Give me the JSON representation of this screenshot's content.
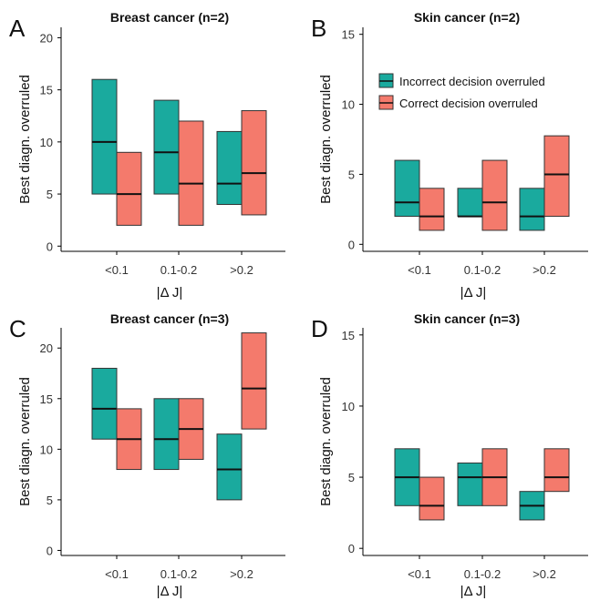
{
  "colors": {
    "incorrect": "#1aaa9e",
    "correct": "#f47a6c",
    "axis": "#000000"
  },
  "legend": {
    "entries": [
      "Incorrect decision overruled",
      "Correct decision overruled"
    ]
  },
  "chart_data": [
    {
      "type": "box",
      "panel": "A",
      "title": "Breast cancer (n=2)",
      "xlabel": "|Δ J|",
      "ylabel": "Best diagn. overruled",
      "categories": [
        "<0.1",
        "0.1-0.2",
        ">0.2"
      ],
      "yticks": [
        0,
        5,
        10,
        15,
        20
      ],
      "ylim": [
        -0.5,
        21
      ],
      "series": [
        {
          "name": "Incorrect decision overruled",
          "boxes": [
            {
              "low": 5,
              "median": 10,
              "high": 16
            },
            {
              "low": 5,
              "median": 9,
              "high": 14
            },
            {
              "low": 4,
              "median": 6,
              "high": 11
            }
          ]
        },
        {
          "name": "Correct decision overruled",
          "boxes": [
            {
              "low": 2,
              "median": 5,
              "high": 9
            },
            {
              "low": 2,
              "median": 6,
              "high": 12
            },
            {
              "low": 3,
              "median": 7,
              "high": 13
            }
          ]
        }
      ]
    },
    {
      "type": "box",
      "panel": "B",
      "title": "Skin cancer (n=2)",
      "xlabel": "|Δ J|",
      "ylabel": "Best diagn. overruled",
      "categories": [
        "<0.1",
        "0.1-0.2",
        ">0.2"
      ],
      "yticks": [
        0,
        5,
        10,
        15
      ],
      "ylim": [
        -0.5,
        15.5
      ],
      "legend": "inside top-right",
      "series": [
        {
          "name": "Incorrect decision overruled",
          "boxes": [
            {
              "low": 2,
              "median": 3,
              "high": 6
            },
            {
              "low": 2,
              "median": 2,
              "high": 4
            },
            {
              "low": 1,
              "median": 2,
              "high": 4
            }
          ]
        },
        {
          "name": "Correct decision overruled",
          "boxes": [
            {
              "low": 1,
              "median": 2,
              "high": 4
            },
            {
              "low": 1,
              "median": 3,
              "high": 6
            },
            {
              "low": 2,
              "median": 5,
              "high": 7.75
            }
          ]
        }
      ]
    },
    {
      "type": "box",
      "panel": "C",
      "title": "Breast cancer (n=3)",
      "xlabel": "|Δ J|",
      "ylabel": "Best diagn. overruled",
      "categories": [
        "<0.1",
        "0.1-0.2",
        ">0.2"
      ],
      "yticks": [
        0,
        5,
        10,
        15,
        20
      ],
      "ylim": [
        -0.5,
        22
      ],
      "series": [
        {
          "name": "Incorrect decision overruled",
          "boxes": [
            {
              "low": 11,
              "median": 14,
              "high": 18
            },
            {
              "low": 8,
              "median": 11,
              "high": 15
            },
            {
              "low": 5,
              "median": 8,
              "high": 11.5
            }
          ]
        },
        {
          "name": "Correct decision overruled",
          "boxes": [
            {
              "low": 8,
              "median": 11,
              "high": 14
            },
            {
              "low": 9,
              "median": 12,
              "high": 15
            },
            {
              "low": 12,
              "median": 16,
              "high": 21.5
            }
          ]
        }
      ]
    },
    {
      "type": "box",
      "panel": "D",
      "title": "Skin cancer (n=3)",
      "xlabel": "|Δ J|",
      "ylabel": "Best diagn. overruled",
      "categories": [
        "<0.1",
        "0.1-0.2",
        ">0.2"
      ],
      "yticks": [
        0,
        5,
        10,
        15
      ],
      "ylim": [
        -0.5,
        15.5
      ],
      "series": [
        {
          "name": "Incorrect decision overruled",
          "boxes": [
            {
              "low": 3,
              "median": 5,
              "high": 7
            },
            {
              "low": 3,
              "median": 5,
              "high": 6
            },
            {
              "low": 2,
              "median": 3,
              "high": 4
            }
          ]
        },
        {
          "name": "Correct decision overruled",
          "boxes": [
            {
              "low": 2,
              "median": 3,
              "high": 5
            },
            {
              "low": 3,
              "median": 5,
              "high": 7
            },
            {
              "low": 4,
              "median": 5,
              "high": 7
            }
          ]
        }
      ]
    }
  ]
}
